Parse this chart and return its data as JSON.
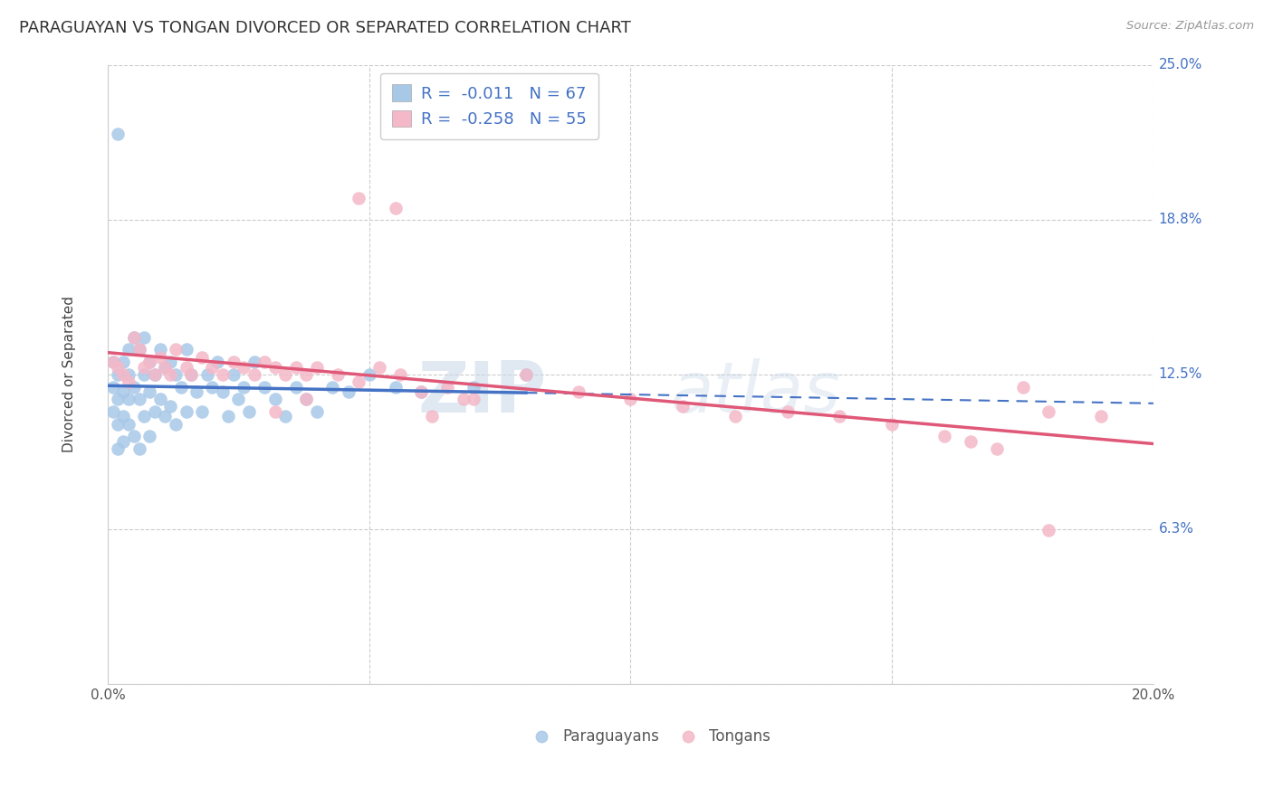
{
  "title": "PARAGUAYAN VS TONGAN DIVORCED OR SEPARATED CORRELATION CHART",
  "source": "Source: ZipAtlas.com",
  "ylabel": "Divorced or Separated",
  "xlabel_paraguayans": "Paraguayans",
  "xlabel_tongans": "Tongans",
  "xmin": 0.0,
  "xmax": 0.2,
  "ymin": 0.0,
  "ymax": 0.25,
  "ytick_vals": [
    0.0,
    0.0625,
    0.125,
    0.1875,
    0.25
  ],
  "ytick_labels": [
    "",
    "6.3%",
    "12.5%",
    "18.8%",
    "25.0%"
  ],
  "xtick_vals": [
    0.0,
    0.05,
    0.1,
    0.15,
    0.2
  ],
  "xtick_labels": [
    "0.0%",
    "",
    "",
    "",
    "20.0%"
  ],
  "legend_r_blue": "-0.011",
  "legend_n_blue": "67",
  "legend_r_pink": "-0.258",
  "legend_n_pink": "55",
  "blue_scatter_color": "#a8c8e8",
  "pink_scatter_color": "#f4b8c8",
  "blue_line_color": "#4472c4",
  "pink_line_color": "#e05878",
  "blue_line_solid_end": 0.08,
  "blue_line_dashed_start": 0.08,
  "watermark_zip_color": "#c8d8e8",
  "watermark_atlas_color": "#c8d8e8",
  "paraguayan_x": [
    0.001,
    0.001,
    0.001,
    0.002,
    0.002,
    0.002,
    0.002,
    0.003,
    0.003,
    0.003,
    0.003,
    0.004,
    0.004,
    0.004,
    0.004,
    0.005,
    0.005,
    0.005,
    0.006,
    0.006,
    0.006,
    0.007,
    0.007,
    0.007,
    0.008,
    0.008,
    0.008,
    0.009,
    0.009,
    0.01,
    0.01,
    0.011,
    0.011,
    0.012,
    0.012,
    0.013,
    0.013,
    0.014,
    0.015,
    0.015,
    0.016,
    0.017,
    0.018,
    0.019,
    0.02,
    0.021,
    0.022,
    0.023,
    0.024,
    0.025,
    0.026,
    0.027,
    0.028,
    0.03,
    0.032,
    0.034,
    0.036,
    0.038,
    0.04,
    0.043,
    0.046,
    0.05,
    0.055,
    0.06,
    0.07,
    0.08,
    0.002
  ],
  "paraguayan_y": [
    0.13,
    0.12,
    0.11,
    0.125,
    0.115,
    0.105,
    0.095,
    0.13,
    0.118,
    0.108,
    0.098,
    0.135,
    0.125,
    0.115,
    0.105,
    0.14,
    0.12,
    0.1,
    0.135,
    0.115,
    0.095,
    0.14,
    0.125,
    0.108,
    0.13,
    0.118,
    0.1,
    0.125,
    0.11,
    0.135,
    0.115,
    0.128,
    0.108,
    0.13,
    0.112,
    0.125,
    0.105,
    0.12,
    0.135,
    0.11,
    0.125,
    0.118,
    0.11,
    0.125,
    0.12,
    0.13,
    0.118,
    0.108,
    0.125,
    0.115,
    0.12,
    0.11,
    0.13,
    0.12,
    0.115,
    0.108,
    0.12,
    0.115,
    0.11,
    0.12,
    0.118,
    0.125,
    0.12,
    0.118,
    0.12,
    0.125,
    0.222
  ],
  "tongan_x": [
    0.001,
    0.002,
    0.003,
    0.004,
    0.005,
    0.006,
    0.007,
    0.008,
    0.009,
    0.01,
    0.011,
    0.012,
    0.013,
    0.015,
    0.016,
    0.018,
    0.02,
    0.022,
    0.024,
    0.026,
    0.028,
    0.03,
    0.032,
    0.034,
    0.036,
    0.038,
    0.04,
    0.044,
    0.048,
    0.052,
    0.056,
    0.06,
    0.065,
    0.07,
    0.08,
    0.09,
    0.1,
    0.11,
    0.12,
    0.13,
    0.14,
    0.15,
    0.16,
    0.165,
    0.17,
    0.175,
    0.18,
    0.19,
    0.048,
    0.055,
    0.032,
    0.038,
    0.062,
    0.068,
    0.18
  ],
  "tongan_y": [
    0.13,
    0.128,
    0.125,
    0.122,
    0.14,
    0.135,
    0.128,
    0.13,
    0.125,
    0.132,
    0.128,
    0.125,
    0.135,
    0.128,
    0.125,
    0.132,
    0.128,
    0.125,
    0.13,
    0.128,
    0.125,
    0.13,
    0.128,
    0.125,
    0.128,
    0.125,
    0.128,
    0.125,
    0.122,
    0.128,
    0.125,
    0.118,
    0.12,
    0.115,
    0.125,
    0.118,
    0.115,
    0.112,
    0.108,
    0.11,
    0.108,
    0.105,
    0.1,
    0.098,
    0.095,
    0.12,
    0.11,
    0.108,
    0.196,
    0.192,
    0.11,
    0.115,
    0.108,
    0.115,
    0.062
  ]
}
